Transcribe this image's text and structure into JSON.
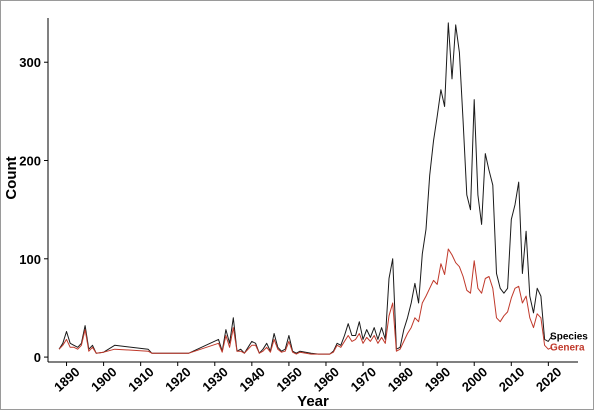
{
  "chart_data": {
    "type": "line",
    "xlabel": "Year",
    "ylabel": "Count",
    "xlim": [
      1885,
      2028
    ],
    "ylim": [
      -5,
      345
    ],
    "x_ticks": [
      1890,
      1900,
      1910,
      1920,
      1930,
      1940,
      1950,
      1960,
      1970,
      1980,
      1990,
      2000,
      2010,
      2020
    ],
    "y_ticks": [
      0,
      100,
      200,
      300
    ],
    "grid": false,
    "series": [
      {
        "name": "Species",
        "color": "#1a1a1a",
        "points": [
          [
            1888,
            8
          ],
          [
            1889,
            14
          ],
          [
            1890,
            26
          ],
          [
            1891,
            14
          ],
          [
            1892,
            12
          ],
          [
            1893,
            10
          ],
          [
            1894,
            14
          ],
          [
            1895,
            32
          ],
          [
            1896,
            8
          ],
          [
            1897,
            12
          ],
          [
            1898,
            4
          ],
          [
            1900,
            5
          ],
          [
            1903,
            12
          ],
          [
            1912,
            8
          ],
          [
            1913,
            4
          ],
          [
            1923,
            4
          ],
          [
            1931,
            18
          ],
          [
            1932,
            6
          ],
          [
            1933,
            28
          ],
          [
            1934,
            14
          ],
          [
            1935,
            40
          ],
          [
            1936,
            6
          ],
          [
            1937,
            8
          ],
          [
            1938,
            4
          ],
          [
            1939,
            10
          ],
          [
            1940,
            16
          ],
          [
            1941,
            14
          ],
          [
            1942,
            4
          ],
          [
            1943,
            8
          ],
          [
            1944,
            14
          ],
          [
            1945,
            6
          ],
          [
            1946,
            24
          ],
          [
            1947,
            10
          ],
          [
            1948,
            6
          ],
          [
            1949,
            8
          ],
          [
            1950,
            22
          ],
          [
            1951,
            6
          ],
          [
            1952,
            4
          ],
          [
            1953,
            6
          ],
          [
            1956,
            4
          ],
          [
            1958,
            3
          ],
          [
            1961,
            3
          ],
          [
            1962,
            6
          ],
          [
            1963,
            14
          ],
          [
            1964,
            12
          ],
          [
            1965,
            22
          ],
          [
            1966,
            34
          ],
          [
            1967,
            22
          ],
          [
            1968,
            22
          ],
          [
            1969,
            36
          ],
          [
            1970,
            18
          ],
          [
            1971,
            28
          ],
          [
            1972,
            20
          ],
          [
            1973,
            30
          ],
          [
            1974,
            18
          ],
          [
            1975,
            30
          ],
          [
            1976,
            18
          ],
          [
            1977,
            80
          ],
          [
            1978,
            100
          ],
          [
            1979,
            8
          ],
          [
            1980,
            10
          ],
          [
            1981,
            28
          ],
          [
            1982,
            40
          ],
          [
            1983,
            55
          ],
          [
            1984,
            75
          ],
          [
            1985,
            55
          ],
          [
            1986,
            105
          ],
          [
            1987,
            130
          ],
          [
            1988,
            185
          ],
          [
            1989,
            220
          ],
          [
            1990,
            245
          ],
          [
            1991,
            272
          ],
          [
            1992,
            255
          ],
          [
            1993,
            340
          ],
          [
            1994,
            283
          ],
          [
            1995,
            338
          ],
          [
            1996,
            310
          ],
          [
            1997,
            240
          ],
          [
            1998,
            165
          ],
          [
            1999,
            150
          ],
          [
            2000,
            262
          ],
          [
            2001,
            165
          ],
          [
            2002,
            135
          ],
          [
            2003,
            207
          ],
          [
            2004,
            190
          ],
          [
            2005,
            175
          ],
          [
            2006,
            85
          ],
          [
            2007,
            70
          ],
          [
            2008,
            65
          ],
          [
            2009,
            70
          ],
          [
            2010,
            140
          ],
          [
            2011,
            155
          ],
          [
            2012,
            178
          ],
          [
            2013,
            85
          ],
          [
            2014,
            128
          ],
          [
            2015,
            62
          ],
          [
            2016,
            45
          ],
          [
            2017,
            70
          ],
          [
            2018,
            62
          ],
          [
            2019,
            18
          ],
          [
            2020,
            16
          ],
          [
            2021,
            22
          ]
        ]
      },
      {
        "name": "Genera",
        "color": "#c0392b",
        "points": [
          [
            1888,
            8
          ],
          [
            1889,
            12
          ],
          [
            1890,
            18
          ],
          [
            1891,
            10
          ],
          [
            1892,
            10
          ],
          [
            1893,
            8
          ],
          [
            1894,
            12
          ],
          [
            1895,
            28
          ],
          [
            1896,
            6
          ],
          [
            1897,
            10
          ],
          [
            1898,
            4
          ],
          [
            1900,
            5
          ],
          [
            1903,
            8
          ],
          [
            1912,
            6
          ],
          [
            1913,
            4
          ],
          [
            1923,
            4
          ],
          [
            1931,
            14
          ],
          [
            1932,
            5
          ],
          [
            1933,
            22
          ],
          [
            1934,
            10
          ],
          [
            1935,
            30
          ],
          [
            1936,
            6
          ],
          [
            1937,
            6
          ],
          [
            1938,
            4
          ],
          [
            1939,
            8
          ],
          [
            1940,
            12
          ],
          [
            1941,
            12
          ],
          [
            1942,
            4
          ],
          [
            1943,
            6
          ],
          [
            1944,
            10
          ],
          [
            1945,
            5
          ],
          [
            1946,
            18
          ],
          [
            1947,
            8
          ],
          [
            1948,
            5
          ],
          [
            1949,
            6
          ],
          [
            1950,
            16
          ],
          [
            1951,
            5
          ],
          [
            1952,
            3
          ],
          [
            1953,
            5
          ],
          [
            1956,
            3
          ],
          [
            1958,
            3
          ],
          [
            1961,
            3
          ],
          [
            1962,
            5
          ],
          [
            1963,
            12
          ],
          [
            1964,
            10
          ],
          [
            1965,
            16
          ],
          [
            1966,
            22
          ],
          [
            1967,
            16
          ],
          [
            1968,
            18
          ],
          [
            1969,
            24
          ],
          [
            1970,
            14
          ],
          [
            1971,
            20
          ],
          [
            1972,
            16
          ],
          [
            1973,
            22
          ],
          [
            1974,
            14
          ],
          [
            1975,
            20
          ],
          [
            1976,
            14
          ],
          [
            1977,
            42
          ],
          [
            1978,
            55
          ],
          [
            1979,
            6
          ],
          [
            1980,
            8
          ],
          [
            1981,
            16
          ],
          [
            1982,
            24
          ],
          [
            1983,
            30
          ],
          [
            1984,
            40
          ],
          [
            1985,
            36
          ],
          [
            1986,
            55
          ],
          [
            1987,
            62
          ],
          [
            1988,
            70
          ],
          [
            1989,
            78
          ],
          [
            1990,
            74
          ],
          [
            1991,
            95
          ],
          [
            1992,
            84
          ],
          [
            1993,
            110
          ],
          [
            1994,
            104
          ],
          [
            1995,
            96
          ],
          [
            1996,
            92
          ],
          [
            1997,
            82
          ],
          [
            1998,
            68
          ],
          [
            1999,
            65
          ],
          [
            2000,
            98
          ],
          [
            2001,
            70
          ],
          [
            2002,
            65
          ],
          [
            2003,
            80
          ],
          [
            2004,
            82
          ],
          [
            2005,
            70
          ],
          [
            2006,
            40
          ],
          [
            2007,
            36
          ],
          [
            2008,
            42
          ],
          [
            2009,
            46
          ],
          [
            2010,
            60
          ],
          [
            2011,
            70
          ],
          [
            2012,
            72
          ],
          [
            2013,
            55
          ],
          [
            2014,
            62
          ],
          [
            2015,
            40
          ],
          [
            2016,
            30
          ],
          [
            2017,
            44
          ],
          [
            2018,
            40
          ],
          [
            2019,
            12
          ],
          [
            2020,
            8
          ],
          [
            2021,
            10
          ]
        ]
      }
    ]
  }
}
